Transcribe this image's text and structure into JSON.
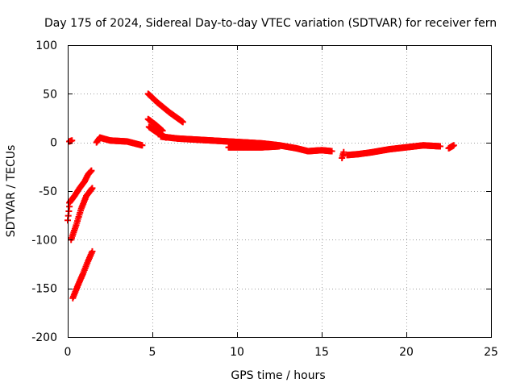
{
  "chart_data": {
    "type": "scatter",
    "title": "Day 175 of 2024, Sidereal Day-to-day VTEC variation (SDTVAR) for receiver fern",
    "xlabel": "GPS time / hours",
    "ylabel": "SDTVAR / TECUs",
    "xlim": [
      0,
      25
    ],
    "ylim": [
      -200,
      100
    ],
    "xticks": [
      0,
      5,
      10,
      15,
      20,
      25
    ],
    "yticks": [
      -200,
      -150,
      -100,
      -50,
      0,
      50,
      100
    ],
    "xtick_labels": [
      "0",
      "5",
      "10",
      "15",
      "20",
      "25"
    ],
    "ytick_labels": [
      "-200",
      "-150",
      "-100",
      "-50",
      "0",
      "50",
      "100"
    ],
    "grid": true,
    "marker": "plus",
    "colors": {
      "series": "#ff0000",
      "grid": "#a0a0a0",
      "axis": "#000000"
    },
    "series": [
      {
        "segments": [
          [
            [
              0.0,
              -80
            ],
            [
              0.1,
              -66
            ]
          ],
          [
            [
              0.1,
              -62
            ],
            [
              0.4,
              -55
            ],
            [
              0.7,
              -47
            ],
            [
              1.0,
              -40
            ],
            [
              1.2,
              -33
            ],
            [
              1.4,
              -29
            ]
          ],
          [
            [
              0.2,
              -100
            ],
            [
              0.5,
              -85
            ],
            [
              0.8,
              -68
            ],
            [
              1.1,
              -55
            ],
            [
              1.45,
              -47
            ]
          ],
          [
            [
              0.3,
              -160
            ],
            [
              0.6,
              -147
            ],
            [
              0.9,
              -135
            ],
            [
              1.2,
              -122
            ],
            [
              1.45,
              -112
            ]
          ],
          [
            [
              0.1,
              1
            ],
            [
              0.25,
              2
            ]
          ],
          [
            [
              1.7,
              0
            ],
            [
              1.9,
              5
            ],
            [
              2.5,
              2
            ],
            [
              3.5,
              1
            ],
            [
              4.4,
              -3
            ]
          ],
          [
            [
              4.75,
              50
            ],
            [
              5.3,
              41
            ],
            [
              6.0,
              31
            ],
            [
              6.8,
              21
            ]
          ],
          [
            [
              4.75,
              24
            ],
            [
              5.2,
              18
            ],
            [
              5.6,
              12
            ]
          ],
          [
            [
              4.8,
              16
            ],
            [
              5.3,
              10
            ],
            [
              5.8,
              5
            ]
          ],
          [
            [
              5.5,
              6
            ],
            [
              6.5,
              4
            ],
            [
              7.5,
              3
            ],
            [
              8.5,
              2
            ],
            [
              9.5,
              1
            ],
            [
              10.5,
              0
            ],
            [
              11.5,
              -1
            ],
            [
              12.5,
              -3
            ],
            [
              13.5,
              -6
            ],
            [
              14.2,
              -9
            ],
            [
              15.0,
              -8
            ],
            [
              15.6,
              -9
            ]
          ],
          [
            [
              9.5,
              -5
            ],
            [
              10.5,
              -5
            ],
            [
              11.5,
              -5
            ],
            [
              12.5,
              -4
            ]
          ],
          [
            [
              16.2,
              -16
            ],
            [
              16.3,
              -10
            ]
          ],
          [
            [
              16.5,
              -13
            ],
            [
              17.2,
              -12
            ],
            [
              18.0,
              -10
            ],
            [
              19.0,
              -7
            ],
            [
              20.0,
              -5
            ],
            [
              21.0,
              -3
            ],
            [
              22.0,
              -4
            ]
          ],
          [
            [
              22.5,
              -6
            ],
            [
              22.8,
              -3
            ]
          ]
        ]
      }
    ]
  }
}
